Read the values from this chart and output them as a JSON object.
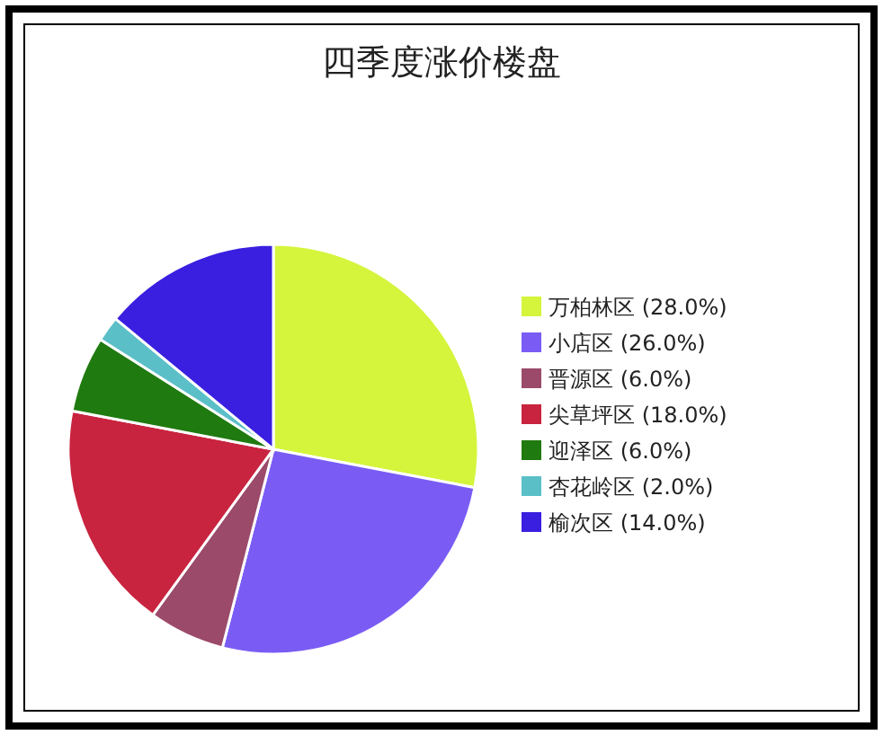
{
  "chart_data": {
    "type": "pie",
    "title": "四季度涨价楼盘",
    "categories": [
      "万柏林区 (28.0%)",
      "小店区 (26.0%)",
      "晋源区 (6.0%)",
      "尖草坪区 (18.0%)",
      "迎泽区 (6.0%)",
      "杏花岭区 (2.0%)",
      "榆次区 (14.0%)"
    ],
    "values": [
      28,
      26,
      6,
      18,
      6,
      2,
      14
    ],
    "colors": [
      "#d4f53c",
      "#7a5cf5",
      "#9b4a6a",
      "#c8233f",
      "#1f7a0f",
      "#5bbfc8",
      "#3a1fe0"
    ],
    "legend": "right"
  }
}
